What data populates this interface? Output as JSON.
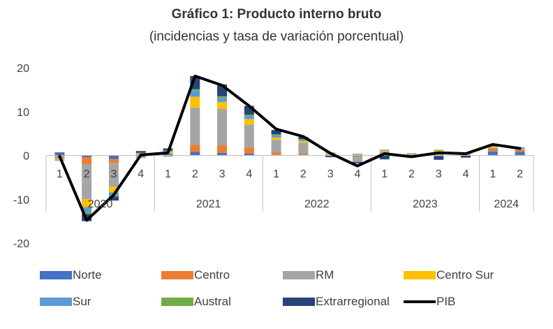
{
  "title": "Gráfico 1: Producto interno bruto",
  "subtitle": "(incidencias y tasa de variación porcentual)",
  "colors": {
    "Norte": "#4472C4",
    "Centro": "#ED7D31",
    "RM": "#A5A5A5",
    "Centro Sur": "#FFC000",
    "Sur": "#5B9BD5",
    "Austral": "#70AD47",
    "Extrarregional": "#264478",
    "PIB": "#000000"
  },
  "chart_data": {
    "type": "bar",
    "stacked": true,
    "ylim": [
      -20,
      20
    ],
    "yticks": [
      -20,
      -10,
      0,
      10,
      20
    ],
    "categories": [
      "1",
      "2",
      "3",
      "4",
      "1",
      "2",
      "3",
      "4",
      "1",
      "2",
      "3",
      "4",
      "1",
      "2",
      "3",
      "4",
      "1",
      "2"
    ],
    "groups": [
      {
        "label": "2020",
        "count": 4
      },
      {
        "label": "2021",
        "count": 4
      },
      {
        "label": "2022",
        "count": 4
      },
      {
        "label": "2023",
        "count": 4
      },
      {
        "label": "2024",
        "count": 2
      }
    ],
    "series": [
      {
        "name": "Norte",
        "values": [
          0.6,
          -0.4,
          -0.8,
          0.1,
          0.3,
          0.8,
          0.6,
          0.4,
          0.1,
          0.1,
          -0.1,
          -0.2,
          0.3,
          -0.1,
          -0.2,
          0.1,
          0.9,
          0.8
        ]
      },
      {
        "name": "Centro",
        "values": [
          -0.3,
          -1.6,
          -0.9,
          0.1,
          0.2,
          1.6,
          1.7,
          1.4,
          0.6,
          0.3,
          0.1,
          -0.1,
          0.2,
          0.1,
          0.2,
          0.1,
          0.7,
          0.4
        ]
      },
      {
        "name": "RM",
        "values": [
          -0.5,
          -8.0,
          -5.5,
          -0.6,
          -0.3,
          8.5,
          8.3,
          5.2,
          2.8,
          2.5,
          0.2,
          -1.2,
          0.4,
          0.1,
          0.1,
          0.1,
          0.2,
          0.3
        ]
      },
      {
        "name": "Centro Sur",
        "values": [
          -0.2,
          -1.8,
          -1.2,
          0.2,
          0.3,
          2.5,
          1.6,
          1.3,
          0.6,
          0.4,
          0.2,
          0.2,
          0.2,
          0.1,
          0.8,
          0.1,
          0.2,
          0.1
        ]
      },
      {
        "name": "Sur",
        "values": [
          -0.1,
          -1.2,
          -0.7,
          0.1,
          0.2,
          1.4,
          0.9,
          0.7,
          0.5,
          0.3,
          0.1,
          0.1,
          0.1,
          0.1,
          0.1,
          0.1,
          0.1,
          0.2
        ]
      },
      {
        "name": "Austral",
        "values": [
          -0.1,
          -0.4,
          -0.3,
          0.1,
          0.1,
          0.3,
          0.4,
          0.3,
          0.2,
          0.1,
          0.1,
          0.1,
          0.1,
          0.1,
          0.1,
          0.1,
          0.1,
          0.1
        ]
      },
      {
        "name": "Extrarregional",
        "values": [
          0.1,
          -1.6,
          -0.9,
          0.4,
          0.5,
          3.0,
          2.7,
          2.0,
          1.0,
          0.5,
          -0.3,
          -0.3,
          -0.9,
          -0.4,
          -0.8,
          -0.5,
          0.0,
          -0.1
        ]
      }
    ],
    "line": {
      "name": "PIB",
      "values": [
        -0.2,
        -14.8,
        -9.0,
        0.1,
        0.6,
        18.1,
        16.0,
        11.3,
        6.0,
        4.3,
        0.5,
        -2.4,
        0.4,
        -0.3,
        0.6,
        0.4,
        2.5,
        1.6
      ]
    },
    "legend_position": "bottom",
    "legend_rows": [
      [
        "Norte",
        "Centro",
        "RM",
        "Centro Sur"
      ],
      [
        "Sur",
        "Austral",
        "Extrarregional",
        "PIB"
      ]
    ]
  }
}
